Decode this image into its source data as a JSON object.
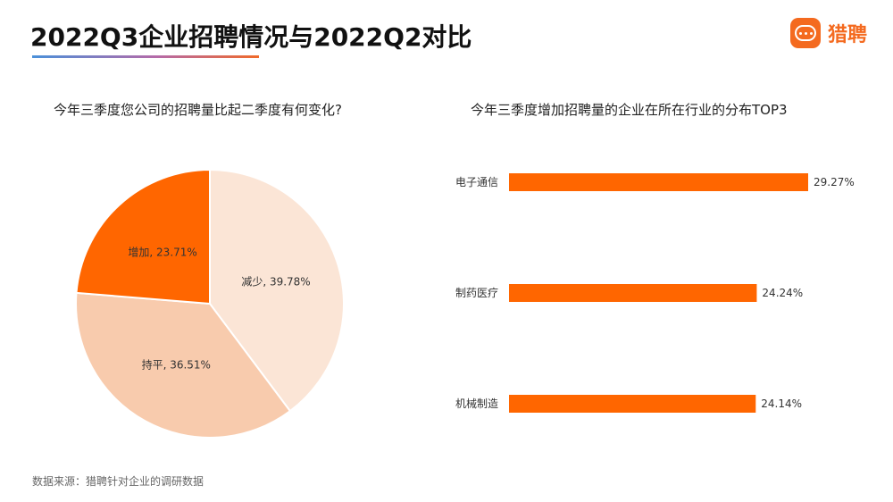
{
  "header": {
    "title": "2022Q3企业招聘情况与2022Q2对比",
    "logo_text": "猎聘",
    "logo_icon": "chat-bubble-icon",
    "brand_color": "#f46a1f"
  },
  "chart_data": [
    {
      "type": "pie",
      "title": "今年三季度您公司的招聘量比起二季度有何变化?",
      "slices": [
        {
          "label": "减少",
          "value": 39.78,
          "display": "减少, 39.78%",
          "color": "#fbe5d6"
        },
        {
          "label": "持平",
          "value": 36.51,
          "display": "持平, 36.51%",
          "color": "#f8cbad"
        },
        {
          "label": "增加",
          "value": 23.71,
          "display": "增加, 23.71%",
          "color": "#ff6600"
        }
      ]
    },
    {
      "type": "bar",
      "orientation": "horizontal",
      "title": "今年三季度增加招聘量的企业在所在行业的分布TOP3",
      "categories": [
        "电子通信",
        "制药医疗",
        "机械制造"
      ],
      "values": [
        29.27,
        24.24,
        24.14
      ],
      "value_labels": [
        "29.27%",
        "24.24%",
        "24.14%"
      ],
      "color": "#ff6600",
      "grid": false
    }
  ],
  "footer": {
    "source": "数据来源：猎聘针对企业的调研数据"
  }
}
